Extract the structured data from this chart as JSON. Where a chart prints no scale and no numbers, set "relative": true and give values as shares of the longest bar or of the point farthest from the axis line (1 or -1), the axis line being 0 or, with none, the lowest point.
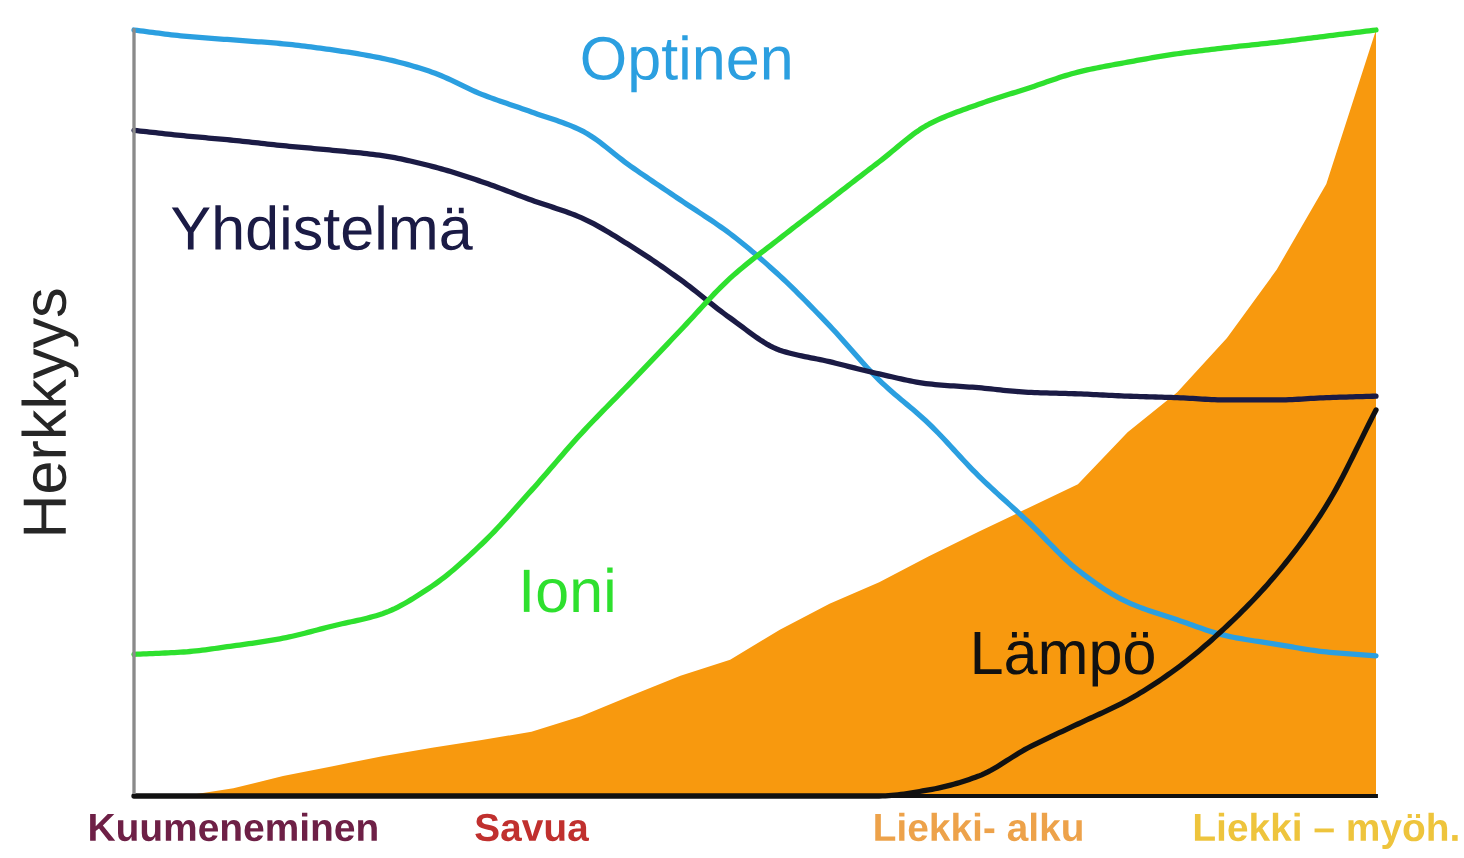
{
  "chart_data": {
    "type": "line",
    "relative": true,
    "ylabel": "Herkkyys",
    "tick_labels": "x",
    "categories": [
      null,
      null,
      "Kuumeneminen",
      null,
      null,
      null,
      null,
      null,
      "Savua",
      null,
      null,
      null,
      null,
      null,
      null,
      null,
      null,
      "Liekki- alku",
      null,
      null,
      null,
      null,
      null,
      null,
      "Liekki – myöh.",
      null
    ],
    "series": [
      {
        "name": "Optinen",
        "color": "#2b9fe0",
        "values": [
          1.0,
          0.992,
          0.987,
          0.982,
          0.974,
          0.963,
          0.945,
          0.916,
          0.893,
          0.869,
          0.822,
          0.778,
          0.734,
          0.679,
          0.614,
          0.543,
          0.486,
          0.418,
          0.358,
          0.295,
          0.253,
          0.23,
          0.209,
          0.198,
          0.188,
          0.183
        ]
      },
      {
        "name": "Yhdistelmä",
        "color": "#1b1b45",
        "values": [
          0.869,
          0.862,
          0.856,
          0.849,
          0.843,
          0.836,
          0.822,
          0.802,
          0.778,
          0.755,
          0.718,
          0.674,
          0.624,
          0.582,
          0.567,
          0.551,
          0.538,
          0.533,
          0.527,
          0.525,
          0.522,
          0.52,
          0.517,
          0.517,
          0.52,
          0.522
        ]
      },
      {
        "name": "Ioni",
        "color": "#2ee02e",
        "values": [
          0.185,
          0.188,
          0.196,
          0.206,
          0.222,
          0.238,
          0.274,
          0.329,
          0.399,
          0.473,
          0.54,
          0.608,
          0.676,
          0.728,
          0.778,
          0.828,
          0.877,
          0.903,
          0.924,
          0.945,
          0.958,
          0.969,
          0.977,
          0.984,
          0.992,
          1.0
        ]
      },
      {
        "name": "Lämpö",
        "color": "#111111",
        "values": [
          0,
          0,
          0,
          0,
          0,
          0,
          0,
          0,
          0,
          0,
          0,
          0,
          0,
          0,
          0,
          0,
          0.008,
          0.026,
          0.063,
          0.094,
          0.125,
          0.167,
          0.222,
          0.29,
          0.379,
          0.504
        ]
      },
      {
        "type": "area",
        "color": "#f8990e",
        "values": [
          0,
          0,
          0.01,
          0.026,
          0.039,
          0.052,
          0.063,
          0.073,
          0.084,
          0.104,
          0.131,
          0.157,
          0.178,
          0.217,
          0.251,
          0.279,
          0.313,
          0.345,
          0.376,
          0.407,
          0.475,
          0.527,
          0.598,
          0.687,
          0.799,
          1.0
        ]
      }
    ]
  }
}
